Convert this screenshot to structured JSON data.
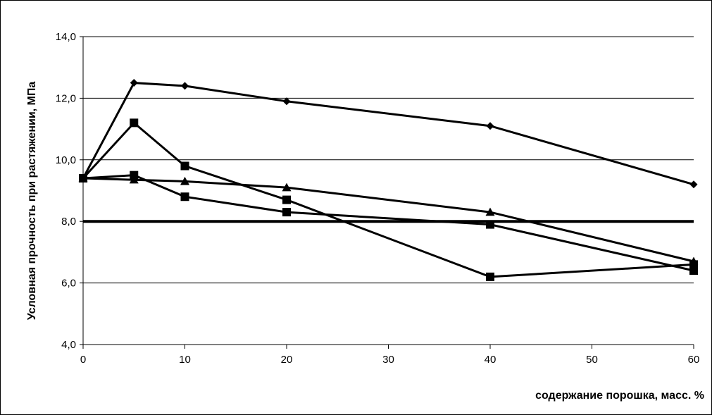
{
  "chart_data": {
    "type": "line",
    "title": "",
    "xlabel": "содержание порошка, масс. %",
    "ylabel": "Условная прочность при растяжении, МПа",
    "xlim": [
      0,
      60
    ],
    "ylim": [
      4.0,
      14.0
    ],
    "x_ticks": [
      0,
      10,
      20,
      30,
      40,
      50,
      60
    ],
    "x_tick_labels": [
      "0",
      "10",
      "20",
      "30",
      "40",
      "50",
      "60"
    ],
    "y_ticks": [
      4,
      6,
      8,
      10,
      12,
      14
    ],
    "y_tick_labels": [
      "4,0",
      "6,0",
      "8,0",
      "10,0",
      "12,0",
      "14,0"
    ],
    "grid": "horizontal",
    "legend": "none",
    "series": [
      {
        "marker": "diamond",
        "x": [
          0,
          5,
          10,
          20,
          40,
          60
        ],
        "y": [
          9.4,
          12.5,
          12.4,
          11.9,
          11.1,
          9.2
        ]
      },
      {
        "marker": "square",
        "x": [
          0,
          5,
          10,
          20,
          40,
          60
        ],
        "y": [
          9.4,
          11.2,
          9.8,
          8.7,
          6.2,
          6.6
        ]
      },
      {
        "marker": "triangle",
        "x": [
          0,
          5,
          10,
          20,
          40,
          60
        ],
        "y": [
          9.4,
          9.35,
          9.3,
          9.1,
          8.3,
          6.7
        ]
      },
      {
        "marker": "square",
        "x": [
          0,
          5,
          10,
          20,
          40,
          60
        ],
        "y": [
          9.4,
          9.5,
          8.8,
          8.3,
          7.9,
          6.4
        ]
      }
    ],
    "reference_line": {
      "y": 8.0,
      "x": [
        0,
        60
      ]
    }
  }
}
